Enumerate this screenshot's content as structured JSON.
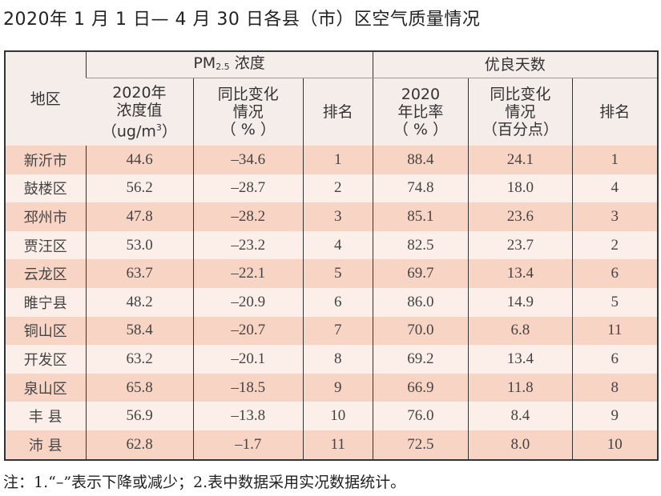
{
  "title": "2020年 1 月 1 日— 4 月 30 日各县（市）区空气质量情况",
  "table": {
    "region_header": "地区",
    "pm_group": {
      "prefix": "PM",
      "sub": "2.5",
      "suffix": " 浓度"
    },
    "good_group": "优良天数",
    "pm_cols": {
      "value": [
        "2020年",
        "浓度值",
        "（ug/m",
        "3",
        "）"
      ],
      "change": [
        "同比变化",
        "情况",
        "（ % ）"
      ],
      "rank": "排名"
    },
    "good_cols": {
      "rate": [
        "2020",
        "年比率",
        "（ % ）"
      ],
      "change": [
        "同比变化",
        "情况",
        "（百分点）"
      ],
      "rank": "排名"
    },
    "rows": [
      [
        "新沂市",
        "44.6",
        "–34.6",
        "1",
        "88.4",
        "24.1",
        "1"
      ],
      [
        "鼓楼区",
        "56.2",
        "–28.7",
        "2",
        "74.8",
        "18.0",
        "4"
      ],
      [
        "邳州市",
        "47.8",
        "–28.2",
        "3",
        "85.1",
        "23.6",
        "3"
      ],
      [
        "贾汪区",
        "53.0",
        "–23.2",
        "4",
        "82.5",
        "23.7",
        "2"
      ],
      [
        "云龙区",
        "63.7",
        "–22.1",
        "5",
        "69.7",
        "13.4",
        "6"
      ],
      [
        "睢宁县",
        "48.2",
        "–20.9",
        "6",
        "86.0",
        "14.9",
        "5"
      ],
      [
        "铜山区",
        "58.4",
        "–20.7",
        "7",
        "70.0",
        "6.8",
        "11"
      ],
      [
        "开发区",
        "63.2",
        "–20.1",
        "8",
        "69.2",
        "13.4",
        "6"
      ],
      [
        "泉山区",
        "65.8",
        "–18.5",
        "9",
        "66.9",
        "11.8",
        "8"
      ],
      [
        "丰 县",
        "56.9",
        "–13.8",
        "10",
        "76.0",
        "8.4",
        "9"
      ],
      [
        "沛 县",
        "62.8",
        "–1.7",
        "11",
        "72.5",
        "8.0",
        "10"
      ]
    ]
  },
  "note": "注：1.“–”表示下降或减少；2.表中数据采用实况数据统计。",
  "colors": {
    "header_bg": "#f4edea",
    "row_odd": "#f8d4c5",
    "row_even": "#fcefe9"
  }
}
